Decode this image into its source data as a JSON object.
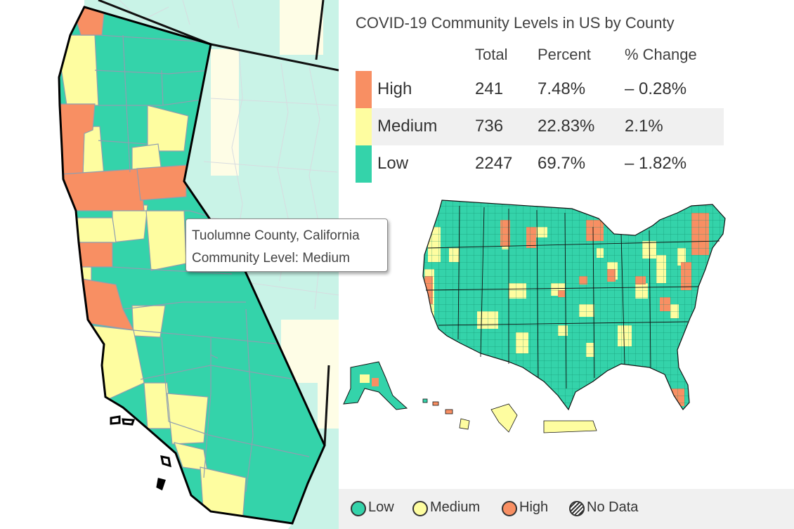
{
  "tooltip": {
    "county": "Tuolumne County, California",
    "level": "Community Level: Medium"
  },
  "summary": {
    "title": "COVID-19 Community Levels in US by County",
    "columns": [
      "Total",
      "Percent",
      "% Change"
    ],
    "rows": [
      {
        "level": "High",
        "total": "241",
        "percent": "7.48%",
        "change": "– 0.28%",
        "color": "#f88f63"
      },
      {
        "level": "Medium",
        "total": "736",
        "percent": "22.83%",
        "change": "2.1%",
        "color": "#fefda0"
      },
      {
        "level": "Low",
        "total": "2247",
        "percent": "69.7%",
        "change": "– 1.82%",
        "color": "#34d3aa"
      }
    ]
  },
  "legend": {
    "items": [
      {
        "label": "Low",
        "color": "#34d3aa",
        "icon": "circle-icon"
      },
      {
        "label": "Medium",
        "color": "#fefda0",
        "icon": "circle-icon"
      },
      {
        "label": "High",
        "color": "#f88f63",
        "icon": "circle-icon"
      },
      {
        "label": "No Data",
        "color": "hatched",
        "icon": "hatched-circle-icon"
      }
    ]
  },
  "colors": {
    "low": "#34d3aa",
    "medium": "#fefda0",
    "high": "#f88f63",
    "low_faded": "#c9f3e7",
    "medium_faded": "#fefde6",
    "legend_background": "#f0f0f0"
  }
}
